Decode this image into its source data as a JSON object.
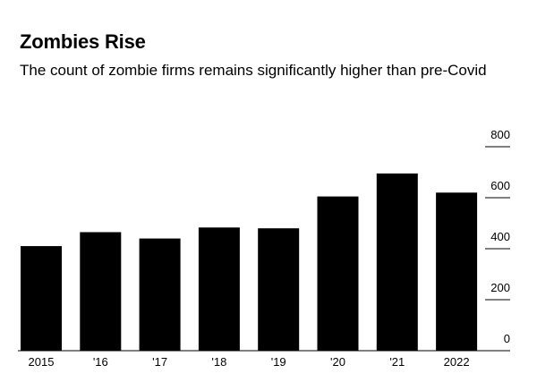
{
  "header": {
    "title": "Zombies Rise",
    "subtitle": "The count of zombie firms remains significantly higher than pre-Covid"
  },
  "colors": {
    "bar": "#000000",
    "text": "#000000",
    "background": "#ffffff"
  },
  "chart_data": {
    "type": "bar",
    "title": "Zombies Rise",
    "subtitle": "The count of zombie firms remains significantly higher than pre-Covid",
    "categories": [
      "2015",
      "'16",
      "'17",
      "'18",
      "'19",
      "'20",
      "'21",
      "2022"
    ],
    "values": [
      410,
      465,
      440,
      483,
      480,
      605,
      695,
      620
    ],
    "xlabel": "",
    "ylabel": "",
    "ylim": [
      0,
      800
    ],
    "yticks": [
      "0",
      "200",
      "400",
      "600",
      "800"
    ],
    "y_axis_position": "right",
    "grid": false,
    "legend": "none"
  }
}
